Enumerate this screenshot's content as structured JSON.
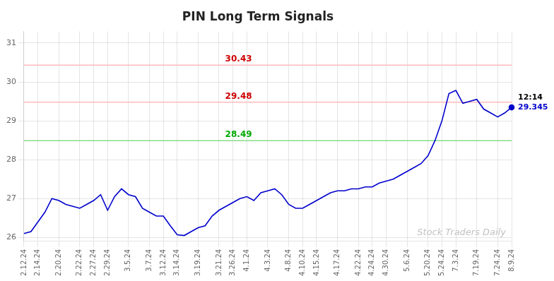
{
  "chart_data": {
    "type": "line",
    "title": "PIN Long Term Signals",
    "color": "#0000cc",
    "grid": true,
    "categories": [
      "2.12.24",
      null,
      "2.14.24",
      null,
      null,
      "2.20.24",
      null,
      null,
      "2.22.24",
      null,
      "2.27.24",
      null,
      "2.29.24",
      null,
      null,
      "3.5.24",
      null,
      null,
      "3.7.24",
      null,
      "3.12.24",
      null,
      "3.14.24",
      null,
      null,
      "3.19.24",
      null,
      null,
      "3.21.24",
      null,
      "3.26.24",
      null,
      "4.1.24",
      null,
      null,
      "4.3.24",
      null,
      null,
      "4.8.24",
      null,
      "4.10.24",
      null,
      "4.15.24",
      null,
      null,
      "4.17.24",
      null,
      null,
      "4.22.24",
      null,
      "4.24.24",
      null,
      "4.30.24",
      null,
      null,
      "5.6.24",
      null,
      null,
      "5.20.24",
      null,
      "5.24.24",
      null,
      "7.3.24",
      null,
      null,
      "7.19.24",
      null,
      null,
      "7.24.24",
      null,
      "8.9.24"
    ],
    "values": [
      26.1,
      26.15,
      26.4,
      26.65,
      27.0,
      26.95,
      26.85,
      26.8,
      26.75,
      26.85,
      26.95,
      27.1,
      26.7,
      27.05,
      27.25,
      27.1,
      27.05,
      26.75,
      26.65,
      26.55,
      26.55,
      26.3,
      26.07,
      26.05,
      26.15,
      26.25,
      26.3,
      26.55,
      26.7,
      26.8,
      26.9,
      27.0,
      27.05,
      26.95,
      27.15,
      27.2,
      27.25,
      27.1,
      26.85,
      26.75,
      26.75,
      26.85,
      26.95,
      27.05,
      27.15,
      27.2,
      27.2,
      27.25,
      27.25,
      27.3,
      27.3,
      27.4,
      27.45,
      27.5,
      27.6,
      27.7,
      27.8,
      27.9,
      28.1,
      28.49,
      29.0,
      29.7,
      29.78,
      29.45,
      29.5,
      29.55,
      29.3,
      29.2,
      29.1,
      29.2,
      29.345
    ],
    "ylim": [
      25.9,
      31.3
    ],
    "yticks": [
      26,
      27,
      28,
      29,
      30,
      31
    ],
    "hlines": [
      {
        "y": 30.43,
        "color": "#ffbbbb",
        "label": "30.43",
        "label_color": "#cc0000"
      },
      {
        "y": 29.48,
        "color": "#ffbbbb",
        "label": "29.48",
        "label_color": "#cc0000"
      },
      {
        "y": 28.49,
        "color": "#88dd88",
        "label": "28.49",
        "label_color": "#00aa00"
      }
    ],
    "annotations": [
      {
        "text": "12:14",
        "color": "black"
      },
      {
        "text": "29.345",
        "color": "#0000cc"
      }
    ],
    "watermark": {
      "text": "Stock Traders Daily",
      "color": "#bbbbbb"
    }
  }
}
